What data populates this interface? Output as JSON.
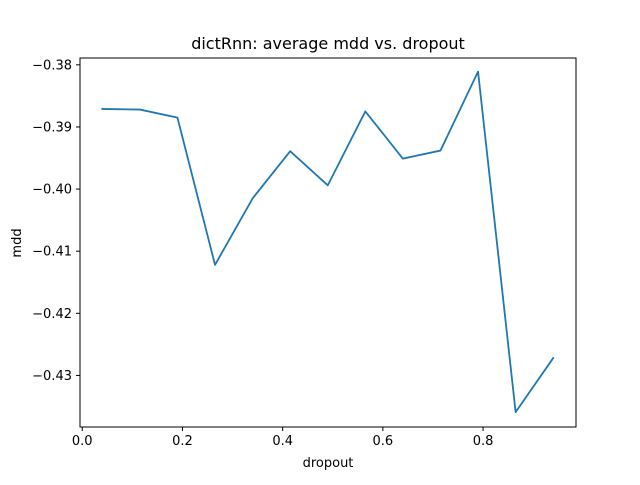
{
  "chart_data": {
    "type": "line",
    "title": "dictRnn: average mdd vs. dropout",
    "xlabel": "dropout",
    "ylabel": "mdd",
    "xlim": [
      -0.0045,
      0.9855
    ],
    "ylim": [
      -0.4383,
      -0.3789
    ],
    "xticks": [
      0.0,
      0.2,
      0.4,
      0.6,
      0.8
    ],
    "xtick_labels": [
      "0.0",
      "0.2",
      "0.4",
      "0.6",
      "0.8"
    ],
    "yticks": [
      -0.43,
      -0.42,
      -0.41,
      -0.4,
      -0.39,
      -0.38
    ],
    "ytick_labels": [
      "−0.43",
      "−0.42",
      "−0.41",
      "−0.40",
      "−0.39",
      "−0.38"
    ],
    "grid": false,
    "series": [
      {
        "color": "#1f77b4",
        "x": [
          0.04,
          0.115,
          0.19,
          0.265,
          0.34,
          0.415,
          0.49,
          0.565,
          0.64,
          0.715,
          0.79,
          0.865,
          0.94
        ],
        "y": [
          -0.3871,
          -0.3872,
          -0.3885,
          -0.4122,
          -0.4015,
          -0.3939,
          -0.3994,
          -0.3875,
          -0.3951,
          -0.3938,
          -0.3811,
          -0.4359,
          -0.4272
        ]
      }
    ]
  }
}
